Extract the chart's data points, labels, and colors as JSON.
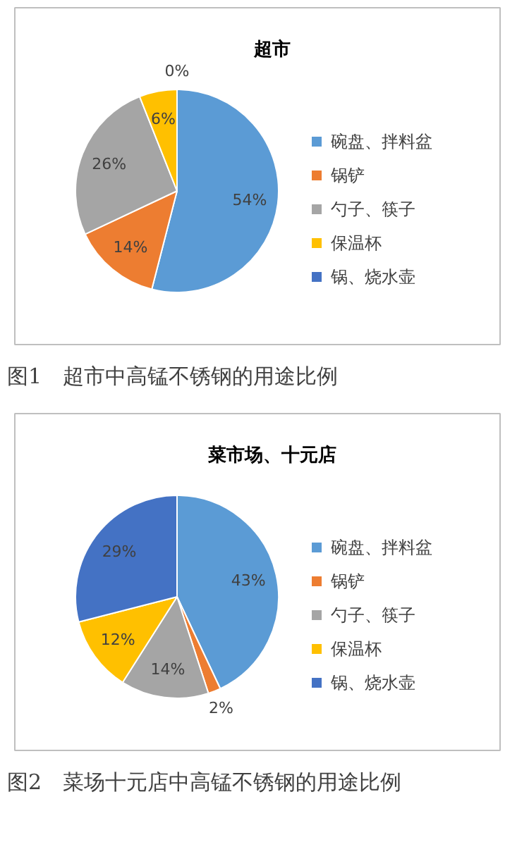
{
  "chart_data": [
    {
      "type": "pie",
      "title": "超市",
      "categories": [
        "碗盘、拌料盆",
        "锅铲",
        "勺子、筷子",
        "保温杯",
        "锅、烧水壶"
      ],
      "values": [
        54,
        14,
        26,
        6,
        0
      ],
      "colors": [
        "#5b9bd5",
        "#ed7d31",
        "#a5a5a5",
        "#ffc000",
        "#4472c4"
      ],
      "value_labels": [
        "54%",
        "14%",
        "26%",
        "6%",
        "0%"
      ],
      "legend": "right",
      "annotations": [
        "图1　超市中高锰不锈钢的用途比例"
      ]
    },
    {
      "type": "pie",
      "title": "菜市场、十元店",
      "categories": [
        "碗盘、拌料盆",
        "锅铲",
        "勺子、筷子",
        "保温杯",
        "锅、烧水壶"
      ],
      "values": [
        43,
        2,
        14,
        12,
        29
      ],
      "colors": [
        "#5b9bd5",
        "#ed7d31",
        "#a5a5a5",
        "#ffc000",
        "#4472c4"
      ],
      "value_labels": [
        "43%",
        "2%",
        "14%",
        "12%",
        "29%"
      ],
      "legend": "right",
      "annotations": [
        "图2　菜场十元店中高锰不锈钢的用途比例"
      ]
    }
  ]
}
